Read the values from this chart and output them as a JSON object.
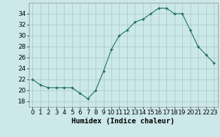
{
  "x": [
    0,
    1,
    2,
    3,
    4,
    5,
    6,
    7,
    8,
    9,
    10,
    11,
    12,
    13,
    14,
    15,
    16,
    17,
    18,
    19,
    20,
    21,
    22,
    23
  ],
  "y": [
    22,
    21,
    20.5,
    20.5,
    20.5,
    20.5,
    19.5,
    18.5,
    20,
    23.5,
    27.5,
    30,
    31,
    32.5,
    33,
    34,
    35,
    35,
    34,
    34,
    31,
    28,
    26.5,
    25
  ],
  "line_color": "#1a6b5a",
  "marker_color": "#1a6b5a",
  "bg_color": "#cce8e8",
  "grid_color": "#aacccc",
  "xlabel": "Humidex (Indice chaleur)",
  "ylim": [
    17,
    36
  ],
  "yticks": [
    18,
    20,
    22,
    24,
    26,
    28,
    30,
    32,
    34
  ],
  "xlim": [
    -0.5,
    23.5
  ],
  "xticks": [
    0,
    1,
    2,
    3,
    4,
    5,
    6,
    7,
    8,
    9,
    10,
    11,
    12,
    13,
    14,
    15,
    16,
    17,
    18,
    19,
    20,
    21,
    22,
    23
  ],
  "xlabel_fontsize": 7.5,
  "tick_fontsize": 6.5
}
